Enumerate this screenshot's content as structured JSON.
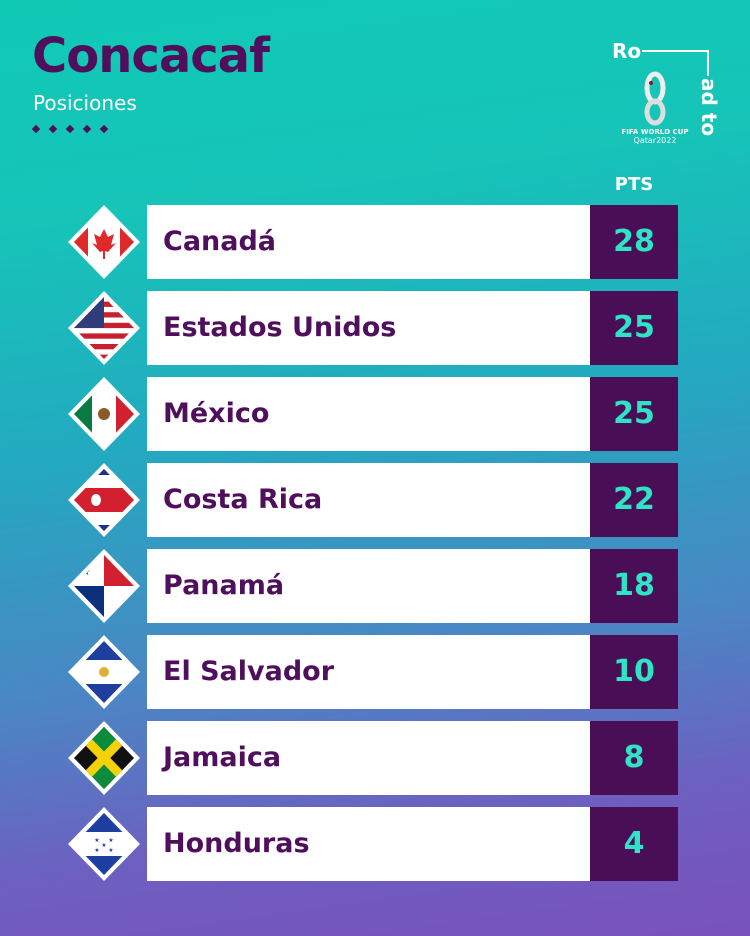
{
  "header": {
    "title": "Concacaf",
    "subtitle": "Posiciones"
  },
  "logo": {
    "text_line1": "Ro",
    "text_line2": "ad to",
    "fifa": "FIFA WORLD CUP",
    "qatar": "Qatar2022"
  },
  "table": {
    "column_header": "PTS",
    "rows": [
      {
        "team": "Canadá",
        "pts": "28",
        "flag": "canada-flag-icon"
      },
      {
        "team": "Estados Unidos",
        "pts": "25",
        "flag": "usa-flag-icon"
      },
      {
        "team": "México",
        "pts": "25",
        "flag": "mexico-flag-icon"
      },
      {
        "team": "Costa Rica",
        "pts": "22",
        "flag": "costa-rica-flag-icon"
      },
      {
        "team": "Panamá",
        "pts": "18",
        "flag": "panama-flag-icon"
      },
      {
        "team": "El Salvador",
        "pts": "10",
        "flag": "el-salvador-flag-icon"
      },
      {
        "team": "Jamaica",
        "pts": "8",
        "flag": "jamaica-flag-icon"
      },
      {
        "team": "Honduras",
        "pts": "4",
        "flag": "honduras-flag-icon"
      }
    ]
  },
  "colors": {
    "title": "#4f0f5c",
    "points_bg": "#4a0e57",
    "points_text": "#2fe3c6"
  }
}
